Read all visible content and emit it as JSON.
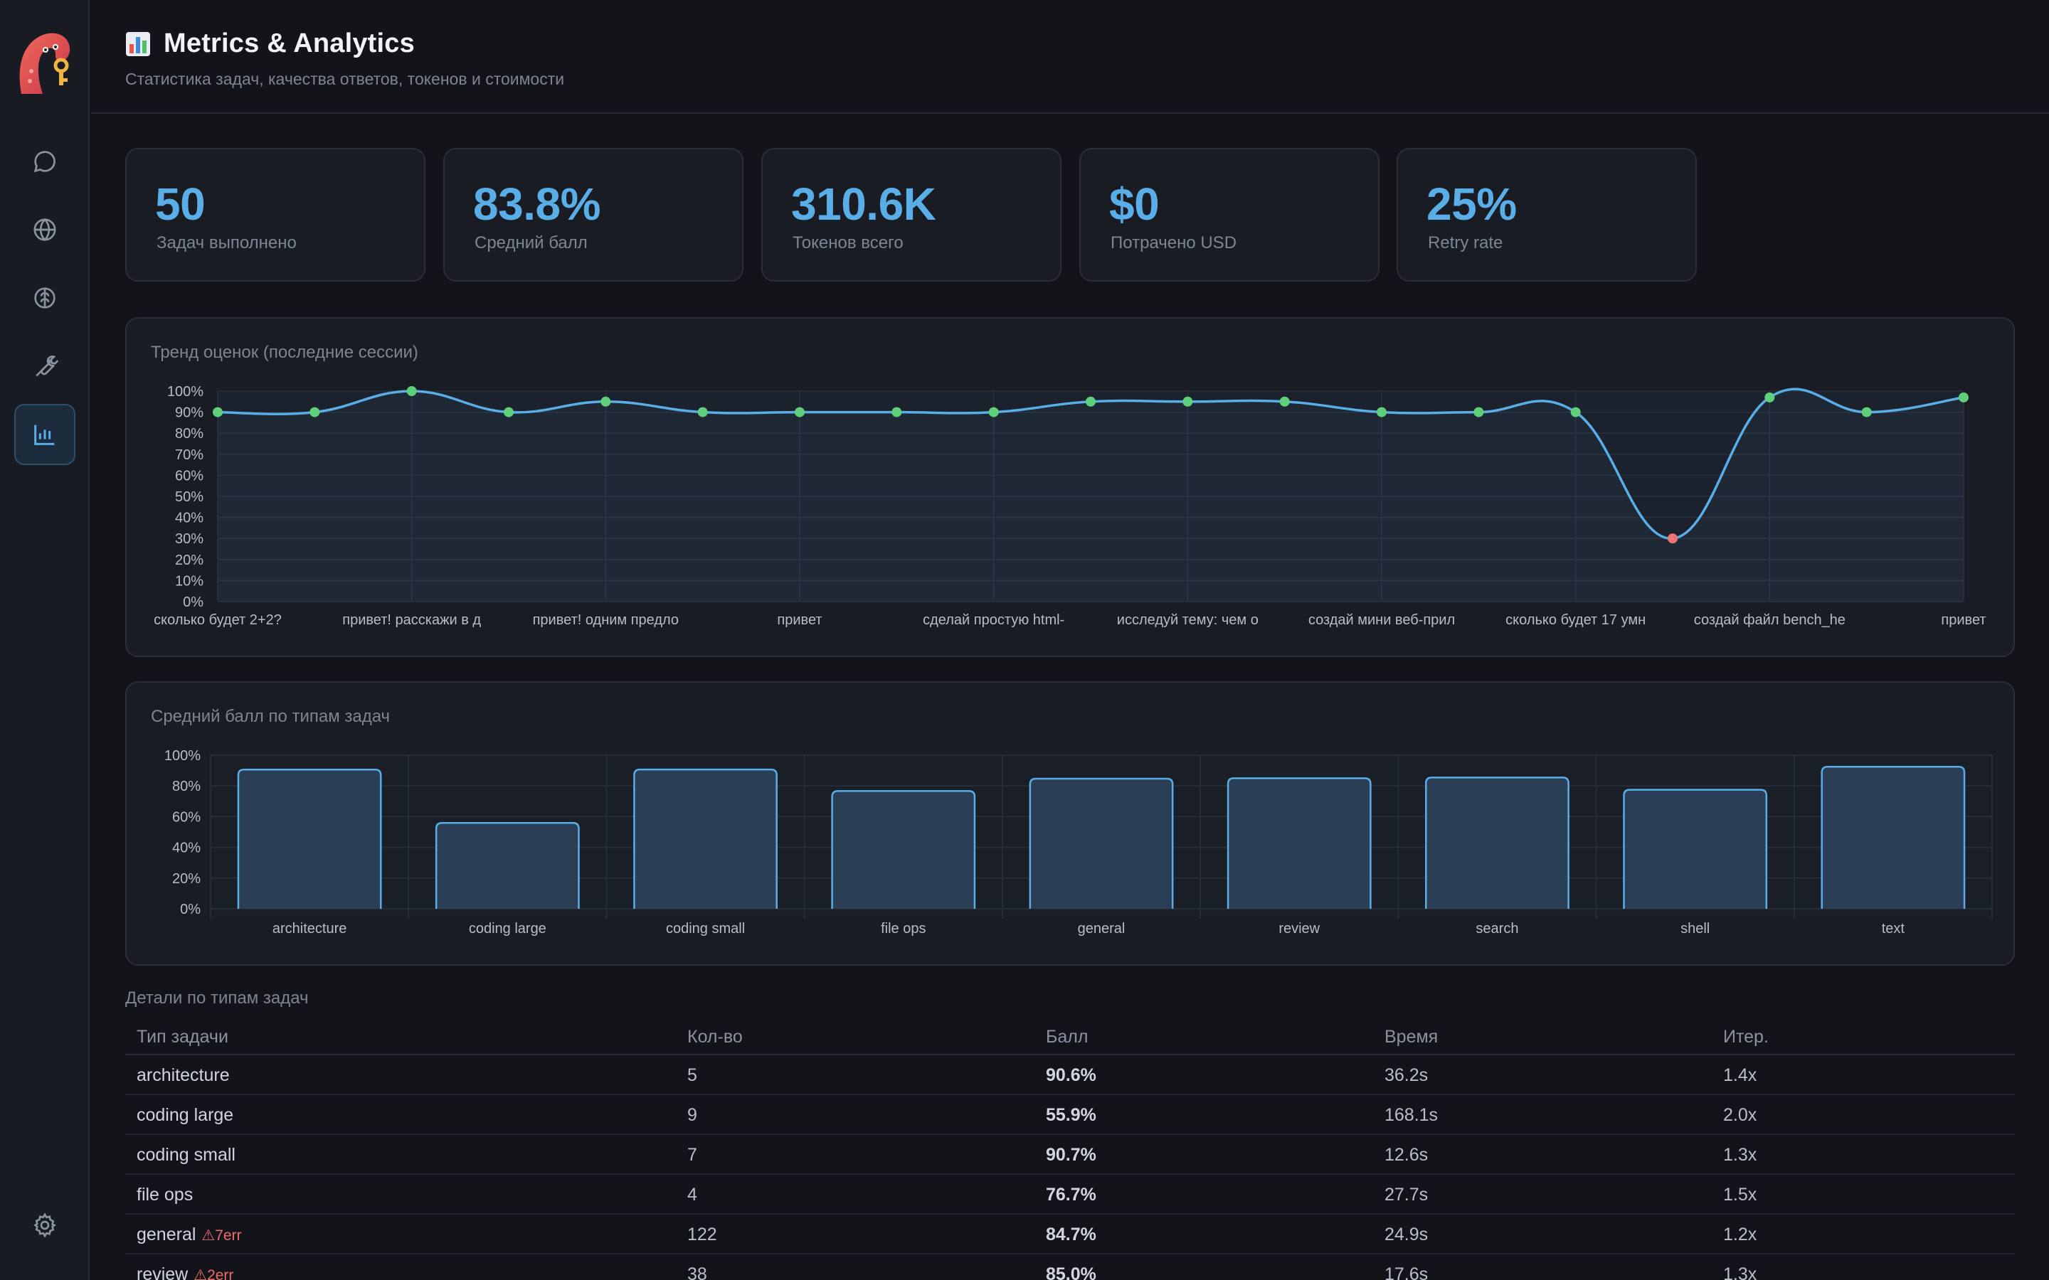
{
  "header": {
    "title": "Metrics & Analytics",
    "subtitle": "Статистика задач, качества ответов, токенов и стоимости"
  },
  "stats": [
    {
      "value": "50",
      "label": "Задач выполнено"
    },
    {
      "value": "83.8%",
      "label": "Средний балл"
    },
    {
      "value": "310.6K",
      "label": "Токенов всего"
    },
    {
      "value": "$0",
      "label": "Потрачено USD"
    },
    {
      "value": "25%",
      "label": "Retry rate"
    }
  ],
  "nav": {
    "items": [
      "chat-icon",
      "globe-icon",
      "brain-icon",
      "wrench-icon",
      "bar-chart-icon"
    ],
    "settings": "gear-icon",
    "active_index": 4
  },
  "colors": {
    "accent": "#5aaee8",
    "point_ok": "#5fd07a",
    "point_bad": "#f07474",
    "background": "#12141a",
    "panel": "#191c23"
  },
  "chart_data": [
    {
      "type": "line",
      "title": "Тренд оценок (последние сессии)",
      "ylim": [
        0,
        100
      ],
      "yticks": [
        "0%",
        "10%",
        "20%",
        "30%",
        "40%",
        "50%",
        "60%",
        "70%",
        "80%",
        "90%",
        "100%"
      ],
      "xlabels": [
        "сколько будет 2+2?",
        "привет! расскажи в д",
        "привет! одним предло",
        "привет",
        "сделай простую html-",
        "исследуй тему: чем о",
        "создай мини веб-прил",
        "сколько будет 17 умн",
        "создай файл bench_he",
        "привет"
      ],
      "values": [
        90,
        90,
        100,
        90,
        95,
        90,
        90,
        90,
        90,
        95,
        95,
        95,
        90,
        90,
        90,
        30,
        97,
        90,
        97
      ],
      "grid": true
    },
    {
      "type": "bar",
      "title": "Средний балл по типам задач",
      "ylim": [
        0,
        100
      ],
      "yticks": [
        "0%",
        "20%",
        "40%",
        "60%",
        "80%",
        "100%"
      ],
      "categories": [
        "architecture",
        "coding large",
        "coding small",
        "file ops",
        "general",
        "review",
        "search",
        "shell",
        "text"
      ],
      "values": [
        90.6,
        55.9,
        90.7,
        76.7,
        84.7,
        85.0,
        85.5,
        77.5,
        92.5
      ],
      "grid": true
    }
  ],
  "table": {
    "title": "Детали по типам задач",
    "columns": [
      "Тип задачи",
      "Кол-во",
      "Балл",
      "Время",
      "Итер."
    ],
    "rows": [
      {
        "type": "architecture",
        "err": "",
        "count": "5",
        "score": "90.6%",
        "time": "36.2s",
        "iter": "1.4x"
      },
      {
        "type": "coding large",
        "err": "",
        "count": "9",
        "score": "55.9%",
        "time": "168.1s",
        "iter": "2.0x"
      },
      {
        "type": "coding small",
        "err": "",
        "count": "7",
        "score": "90.7%",
        "time": "12.6s",
        "iter": "1.3x"
      },
      {
        "type": "file ops",
        "err": "",
        "count": "4",
        "score": "76.7%",
        "time": "27.7s",
        "iter": "1.5x"
      },
      {
        "type": "general",
        "err": "⚠7err",
        "count": "122",
        "score": "84.7%",
        "time": "24.9s",
        "iter": "1.2x"
      },
      {
        "type": "review",
        "err": "⚠2err",
        "count": "38",
        "score": "85.0%",
        "time": "17.6s",
        "iter": "1.3x"
      }
    ]
  }
}
